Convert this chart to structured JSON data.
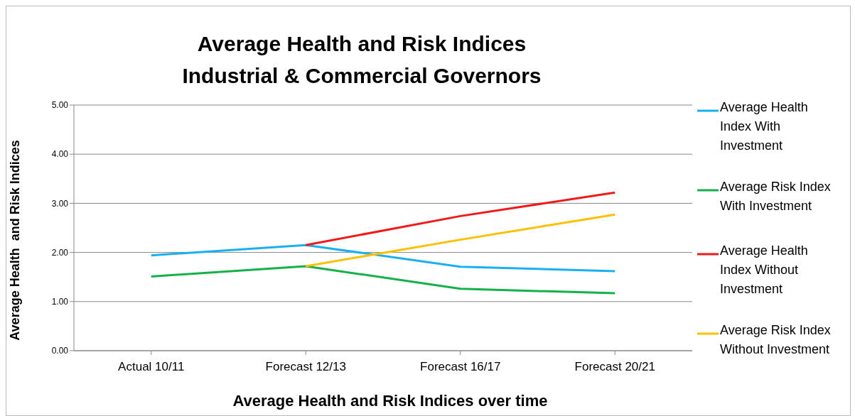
{
  "chart_data": {
    "type": "line",
    "title": "Average Health and Risk Indices\nIndustrial & Commercial Governors",
    "xlabel": "Average Health and Risk Indices over time",
    "ylabel": "Average Health  and Risk Indices",
    "categories": [
      "Actual 10/11",
      "Forecast 12/13",
      "Forecast 16/17",
      "Forecast 20/21"
    ],
    "series": [
      {
        "name": "Average Health Index With Investment",
        "color": "#1ab0f0",
        "values": [
          1.94,
          2.15,
          1.71,
          1.62
        ]
      },
      {
        "name": "Average Risk Index With Investment",
        "color": "#14b04a",
        "values": [
          1.51,
          1.72,
          1.26,
          1.17
        ]
      },
      {
        "name": "Average Health Index Without Investment",
        "color": "#f01a1a",
        "values": [
          null,
          2.15,
          2.74,
          3.22
        ]
      },
      {
        "name": "Average Risk Index Without Investment",
        "color": "#ffc000",
        "values": [
          null,
          1.72,
          2.26,
          2.77
        ]
      }
    ],
    "ylim": [
      0,
      5
    ],
    "yticks": [
      {
        "value": 0,
        "label": "0.00"
      },
      {
        "value": 1,
        "label": "1.00"
      },
      {
        "value": 2,
        "label": "2.00"
      },
      {
        "value": 3,
        "label": "3.00"
      },
      {
        "value": 4,
        "label": "4.00"
      },
      {
        "value": 5,
        "label": "5.00"
      }
    ],
    "grid": "y",
    "legend": "right",
    "marker": "none",
    "line_style": "solid"
  }
}
